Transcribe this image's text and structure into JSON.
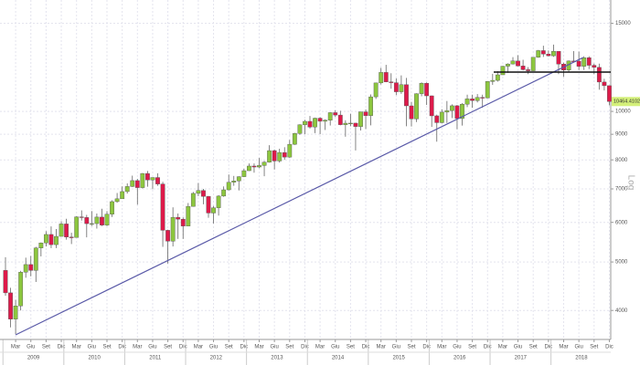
{
  "chart_data": {
    "type": "candlestick",
    "log": true,
    "grid": true,
    "up_color": "#8cc63e",
    "down_color": "#dd1a4a",
    "y_label": "Log",
    "last_label": "10464.4102",
    "ylim": [
      3500,
      16700
    ],
    "yticks": [
      4000,
      5000,
      6000,
      7000,
      8000,
      9000,
      10000,
      15000
    ],
    "years": [
      "2009",
      "2010",
      "2011",
      "2012",
      "2013",
      "2014",
      "2015",
      "2016",
      "2017",
      "2018"
    ],
    "categories": [
      null,
      null,
      "Mar",
      null,
      null,
      "Giu",
      null,
      null,
      "Set",
      null,
      null,
      "Dic",
      null,
      null,
      "Mar",
      null,
      null,
      "Giu",
      null,
      null,
      "Set",
      null,
      null,
      "Dic",
      null,
      null,
      "Mar",
      null,
      null,
      "Giu",
      null,
      null,
      "Set",
      null,
      null,
      "Dic",
      null,
      null,
      "Mar",
      null,
      null,
      "Giu",
      null,
      null,
      "Set",
      null,
      null,
      "Dic",
      null,
      null,
      "Mar",
      null,
      null,
      "Giu",
      null,
      null,
      "Set",
      null,
      null,
      "Dic",
      null,
      null,
      "Mar",
      null,
      null,
      "Giu",
      null,
      null,
      "Set",
      null,
      null,
      "Dic",
      null,
      null,
      "Mar",
      null,
      null,
      "Giu",
      null,
      null,
      "Set",
      null,
      null,
      "Dic",
      null,
      null,
      "Mar",
      null,
      null,
      "Giu",
      null,
      null,
      "Set",
      null,
      null,
      "Dic",
      null,
      null,
      "Mar",
      null,
      null,
      "Giu",
      null,
      null,
      "Set",
      null,
      null,
      "Dic",
      null,
      null,
      "Mar",
      null,
      null,
      "Giu",
      null,
      null,
      "Set",
      null,
      null,
      "Dic"
    ],
    "open": [
      4810,
      4338,
      3843,
      4085,
      4770,
      4941,
      4809,
      5332,
      5458,
      5675,
      5415,
      5625,
      5957,
      5608,
      5598,
      6154,
      6136,
      5965,
      5966,
      6148,
      5925,
      6229,
      6601,
      6688,
      6914,
      7077,
      7272,
      7041,
      7514,
      7294,
      7376,
      7159,
      5785,
      5502,
      6141,
      6089,
      5898,
      6458,
      6856,
      6947,
      6761,
      6264,
      6416,
      6772,
      6970,
      7216,
      7260,
      7405,
      7612,
      7776,
      7741,
      7795,
      7914,
      8348,
      7959,
      8276,
      8103,
      8594,
      9033,
      9405,
      9552,
      9306,
      9692,
      9556,
      9603,
      9943,
      9833,
      9407,
      9470,
      9474,
      9327,
      9980,
      9806,
      10694,
      11402,
      11966,
      11454,
      11413,
      10945,
      11309,
      10259,
      9660,
      10850,
      11382,
      10743,
      9798,
      9495,
      9966,
      10039,
      10263,
      9680,
      10337,
      10593,
      10511,
      10665,
      10640,
      11481,
      11535,
      11834,
      12313,
      12438,
      12615,
      12325,
      12118,
      12056,
      12829,
      13230,
      13024,
      12918,
      13189,
      12436,
      12097,
      12612,
      12605,
      12306,
      12806,
      12364,
      12247,
      11448,
      11257
    ],
    "high": [
      5110,
      4440,
      4200,
      4800,
      5100,
      5140,
      5360,
      5470,
      5760,
      5890,
      5820,
      6030,
      6100,
      5720,
      6170,
      6340,
      6210,
      6320,
      6250,
      6390,
      6320,
      6640,
      6870,
      7080,
      7180,
      7440,
      7330,
      7530,
      7600,
      7380,
      7520,
      7230,
      5800,
      6430,
      6250,
      6140,
      6560,
      6900,
      7190,
      7000,
      6780,
      6470,
      6800,
      7080,
      7480,
      7430,
      7420,
      7680,
      7870,
      7870,
      8070,
      7960,
      8560,
      8390,
      8420,
      8480,
      8770,
      9060,
      9420,
      9620,
      9790,
      9720,
      9740,
      9640,
      9960,
      10050,
      10030,
      9600,
      9890,
      9490,
      9990,
      10090,
      10810,
      11410,
      12220,
      12390,
      11920,
      11640,
      11800,
      11670,
      10450,
      10870,
      11430,
      11430,
      10760,
      9850,
      10100,
      10490,
      10330,
      10300,
      10390,
      10800,
      10800,
      10830,
      10800,
      11490,
      11890,
      12030,
      12320,
      12480,
      12840,
      12950,
      12680,
      12260,
      12830,
      13270,
      13530,
      13240,
      13600,
      13200,
      12510,
      12640,
      13200,
      13170,
      12890,
      12890,
      12460,
      12460,
      11620,
      11260
    ],
    "low": [
      4280,
      3700,
      3588,
      4000,
      4650,
      4680,
      4560,
      5130,
      5370,
      5330,
      5330,
      5620,
      5540,
      5430,
      5600,
      6050,
      5600,
      5900,
      5830,
      5900,
      5900,
      6150,
      6570,
      6690,
      6850,
      7060,
      6510,
      7010,
      7070,
      6990,
      7100,
      5360,
      4966,
      5370,
      5560,
      5560,
      5900,
      6450,
      6770,
      6520,
      6130,
      5970,
      6190,
      6750,
      6950,
      7100,
      6950,
      7390,
      7600,
      7540,
      7700,
      7420,
      7900,
      7655,
      7900,
      8000,
      8080,
      8570,
      8980,
      9000,
      9240,
      9050,
      9000,
      9180,
      9370,
      9750,
      9380,
      8900,
      9340,
      8355,
      9160,
      9220,
      9380,
      10590,
      11320,
      11440,
      11100,
      10780,
      10840,
      9338,
      9330,
      9520,
      10720,
      10300,
      9310,
      8699,
      9460,
      9480,
      9700,
      9210,
      9370,
      10200,
      10170,
      10420,
      10170,
      10620,
      11300,
      11470,
      11830,
      11940,
      12410,
      12300,
      12080,
      11870,
      12050,
      12800,
      12850,
      12880,
      12860,
      11870,
      11730,
      11960,
      12540,
      12100,
      12100,
      12150,
      11870,
      11050,
      11010,
      10280
    ],
    "close": [
      4338,
      3843,
      4085,
      4770,
      4941,
      4809,
      5332,
      5458,
      5675,
      5415,
      5625,
      5957,
      5608,
      5598,
      6154,
      6136,
      5965,
      5966,
      6148,
      5925,
      6229,
      6601,
      6688,
      6914,
      7077,
      7272,
      7041,
      7514,
      7294,
      7376,
      7159,
      5785,
      5502,
      6141,
      6089,
      5898,
      6458,
      6856,
      6947,
      6761,
      6264,
      6416,
      6772,
      6970,
      7216,
      7260,
      7405,
      7612,
      7776,
      7741,
      7795,
      7914,
      8348,
      7959,
      8276,
      8103,
      8594,
      9033,
      9405,
      9552,
      9306,
      9692,
      9556,
      9603,
      9943,
      9833,
      9407,
      9470,
      9474,
      9327,
      9980,
      9806,
      10694,
      11402,
      11966,
      11454,
      11413,
      10945,
      11309,
      10259,
      9660,
      10850,
      11382,
      10743,
      9798,
      9495,
      9966,
      10039,
      10263,
      9680,
      10337,
      10593,
      10511,
      10665,
      10640,
      11481,
      11535,
      11834,
      12313,
      12438,
      12615,
      12325,
      12118,
      12056,
      12829,
      13230,
      13024,
      12918,
      13189,
      12436,
      12097,
      12612,
      12605,
      12306,
      12806,
      12364,
      12247,
      11448,
      11257,
      10464.41
    ]
  }
}
